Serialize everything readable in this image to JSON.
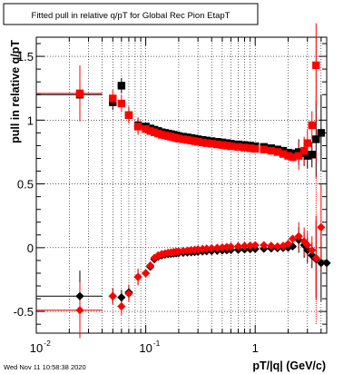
{
  "chart_data": {
    "type": "scatter",
    "title": "Fitted pull in relative q/pT for Global Rec Pion EtapT",
    "xlabel": "pT/|q| (GeV/c)",
    "ylabel": "pull in relative q/pT",
    "xscale": "log",
    "xlim": [
      0.01,
      4.5
    ],
    "ylim": [
      -0.67,
      1.65
    ],
    "x_ticks": [
      {
        "value": 0.01,
        "label": "10",
        "exp": "-2"
      },
      {
        "value": 0.1,
        "label": "10",
        "exp": "-1"
      },
      {
        "value": 1,
        "label": "1",
        "exp": ""
      }
    ],
    "y_ticks": [
      {
        "value": -0.5,
        "label": "-0.5"
      },
      {
        "value": 0,
        "label": "0"
      },
      {
        "value": 0.5,
        "label": "0.5"
      },
      {
        "value": 1,
        "label": "1"
      },
      {
        "value": 1.5,
        "label": "1.5"
      }
    ],
    "grid": true,
    "series": [
      {
        "color": "#000000",
        "marker": "square",
        "points": [
          [
            0.025,
            1.2
          ],
          [
            0.05,
            1.14
          ],
          [
            0.06,
            1.27
          ],
          [
            0.07,
            1.04
          ],
          [
            0.085,
            0.96
          ],
          [
            0.1,
            0.95
          ],
          [
            0.11,
            0.935
          ],
          [
            0.12,
            0.925
          ],
          [
            0.13,
            0.915
          ],
          [
            0.14,
            0.905
          ],
          [
            0.15,
            0.9
          ],
          [
            0.16,
            0.895
          ],
          [
            0.17,
            0.89
          ],
          [
            0.18,
            0.885
          ],
          [
            0.19,
            0.88
          ],
          [
            0.2,
            0.875
          ],
          [
            0.22,
            0.87
          ],
          [
            0.24,
            0.865
          ],
          [
            0.26,
            0.86
          ],
          [
            0.28,
            0.855
          ],
          [
            0.3,
            0.85
          ],
          [
            0.33,
            0.845
          ],
          [
            0.36,
            0.84
          ],
          [
            0.4,
            0.835
          ],
          [
            0.45,
            0.83
          ],
          [
            0.5,
            0.825
          ],
          [
            0.55,
            0.82
          ],
          [
            0.6,
            0.815
          ],
          [
            0.7,
            0.81
          ],
          [
            0.8,
            0.805
          ],
          [
            0.9,
            0.8
          ],
          [
            1.0,
            0.795
          ],
          [
            1.2,
            0.79
          ],
          [
            1.4,
            0.78
          ],
          [
            1.6,
            0.77
          ],
          [
            1.8,
            0.76
          ],
          [
            2.0,
            0.745
          ],
          [
            2.2,
            0.74
          ],
          [
            2.5,
            0.75
          ],
          [
            2.8,
            0.74
          ],
          [
            3.0,
            0.72
          ],
          [
            3.3,
            0.73
          ],
          [
            3.6,
            0.85
          ],
          [
            4.0,
            0.9
          ]
        ]
      },
      {
        "color": "#ff0000",
        "marker": "square",
        "points": [
          [
            0.025,
            1.21
          ],
          [
            0.05,
            1.17
          ],
          [
            0.06,
            1.13
          ],
          [
            0.07,
            1.04
          ],
          [
            0.085,
            0.95
          ],
          [
            0.1,
            0.93
          ],
          [
            0.11,
            0.915
          ],
          [
            0.12,
            0.905
          ],
          [
            0.13,
            0.895
          ],
          [
            0.14,
            0.885
          ],
          [
            0.15,
            0.88
          ],
          [
            0.16,
            0.875
          ],
          [
            0.17,
            0.87
          ],
          [
            0.18,
            0.865
          ],
          [
            0.19,
            0.86
          ],
          [
            0.2,
            0.855
          ],
          [
            0.22,
            0.85
          ],
          [
            0.24,
            0.845
          ],
          [
            0.26,
            0.84
          ],
          [
            0.28,
            0.835
          ],
          [
            0.3,
            0.83
          ],
          [
            0.33,
            0.825
          ],
          [
            0.36,
            0.82
          ],
          [
            0.4,
            0.815
          ],
          [
            0.45,
            0.81
          ],
          [
            0.5,
            0.805
          ],
          [
            0.55,
            0.8
          ],
          [
            0.6,
            0.795
          ],
          [
            0.7,
            0.79
          ],
          [
            0.8,
            0.785
          ],
          [
            0.9,
            0.78
          ],
          [
            1.0,
            0.775
          ],
          [
            1.2,
            0.77
          ],
          [
            1.4,
            0.76
          ],
          [
            1.6,
            0.75
          ],
          [
            1.8,
            0.735
          ],
          [
            2.0,
            0.72
          ],
          [
            2.2,
            0.71
          ],
          [
            2.5,
            0.72
          ],
          [
            2.8,
            0.76
          ],
          [
            3.0,
            0.82
          ],
          [
            3.3,
            0.96
          ],
          [
            3.6,
            1.43
          ]
        ]
      },
      {
        "color": "#000000",
        "marker": "diamond",
        "points": [
          [
            0.025,
            -0.38
          ],
          [
            0.05,
            -0.38
          ],
          [
            0.06,
            -0.39
          ],
          [
            0.07,
            -0.35
          ],
          [
            0.085,
            -0.23
          ],
          [
            0.1,
            -0.2
          ],
          [
            0.11,
            -0.15
          ],
          [
            0.12,
            -0.09
          ],
          [
            0.13,
            -0.07
          ],
          [
            0.14,
            -0.06
          ],
          [
            0.15,
            -0.055
          ],
          [
            0.16,
            -0.05
          ],
          [
            0.17,
            -0.048
          ],
          [
            0.18,
            -0.046
          ],
          [
            0.19,
            -0.044
          ],
          [
            0.2,
            -0.042
          ],
          [
            0.22,
            -0.04
          ],
          [
            0.24,
            -0.038
          ],
          [
            0.26,
            -0.036
          ],
          [
            0.28,
            -0.034
          ],
          [
            0.3,
            -0.032
          ],
          [
            0.33,
            -0.03
          ],
          [
            0.36,
            -0.028
          ],
          [
            0.4,
            -0.026
          ],
          [
            0.45,
            -0.024
          ],
          [
            0.5,
            -0.022
          ],
          [
            0.55,
            -0.02
          ],
          [
            0.6,
            -0.018
          ],
          [
            0.7,
            -0.016
          ],
          [
            0.8,
            -0.014
          ],
          [
            0.9,
            -0.012
          ],
          [
            1.0,
            -0.01
          ],
          [
            1.2,
            -0.008
          ],
          [
            1.4,
            -0.006
          ],
          [
            1.6,
            -0.004
          ],
          [
            1.8,
            -0.002
          ],
          [
            2.0,
            0.0
          ],
          [
            2.2,
            0.01
          ],
          [
            2.5,
            0.06
          ],
          [
            2.8,
            0.02
          ],
          [
            3.0,
            -0.02
          ],
          [
            3.3,
            -0.06
          ],
          [
            3.6,
            -0.09
          ],
          [
            4.0,
            -0.12
          ],
          [
            4.5,
            -0.12
          ]
        ]
      },
      {
        "color": "#ff0000",
        "marker": "diamond",
        "points": [
          [
            0.025,
            -0.49
          ],
          [
            0.05,
            -0.38
          ],
          [
            0.06,
            -0.46
          ],
          [
            0.07,
            -0.36
          ],
          [
            0.085,
            -0.23
          ],
          [
            0.1,
            -0.2
          ],
          [
            0.11,
            -0.14
          ],
          [
            0.12,
            -0.08
          ],
          [
            0.13,
            -0.06
          ],
          [
            0.14,
            -0.05
          ],
          [
            0.15,
            -0.045
          ],
          [
            0.16,
            -0.04
          ],
          [
            0.17,
            -0.037
          ],
          [
            0.18,
            -0.034
          ],
          [
            0.19,
            -0.031
          ],
          [
            0.2,
            -0.028
          ],
          [
            0.22,
            -0.025
          ],
          [
            0.24,
            -0.022
          ],
          [
            0.26,
            -0.019
          ],
          [
            0.28,
            -0.016
          ],
          [
            0.3,
            -0.013
          ],
          [
            0.33,
            -0.01
          ],
          [
            0.36,
            -0.007
          ],
          [
            0.4,
            -0.004
          ],
          [
            0.45,
            -0.001
          ],
          [
            0.5,
            0.002
          ],
          [
            0.55,
            0.005
          ],
          [
            0.6,
            0.008
          ],
          [
            0.7,
            0.011
          ],
          [
            0.8,
            0.014
          ],
          [
            0.9,
            0.017
          ],
          [
            1.0,
            0.02
          ],
          [
            1.2,
            0.02
          ],
          [
            1.4,
            0.015
          ],
          [
            1.6,
            0.01
          ],
          [
            1.8,
            0.015
          ],
          [
            2.0,
            0.03
          ],
          [
            2.2,
            0.07
          ],
          [
            2.5,
            0.09
          ],
          [
            2.8,
            0.05
          ],
          [
            3.0,
            0.02
          ],
          [
            3.3,
            -0.02
          ],
          [
            3.6,
            -0.08
          ],
          [
            4.0,
            0.16
          ]
        ]
      }
    ]
  },
  "footer": {
    "timestamp": "Wed Nov 11 10:58:38 2020"
  }
}
